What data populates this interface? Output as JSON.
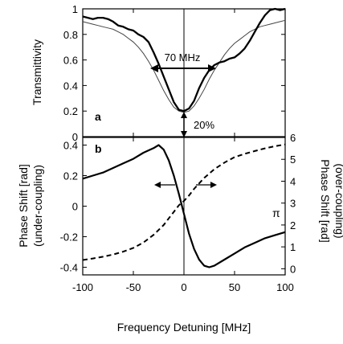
{
  "chart_data": [
    {
      "panel_label": "a",
      "type": "line",
      "ylabel": "Transmittivity",
      "xlim": [
        -100,
        100
      ],
      "ylim": [
        0,
        1
      ],
      "yticks": [
        0,
        0.2,
        0.4,
        0.6,
        0.8,
        1
      ],
      "ytick_labels": [
        "0",
        "0.2",
        "0.4",
        "0.6",
        "0.8",
        "1"
      ],
      "grid": false,
      "annotations": [
        {
          "id": "width",
          "text": "70 MHz"
        },
        {
          "id": "depth",
          "text": "20%"
        }
      ],
      "series": [
        {
          "style": "solid-thick",
          "x": [
            -100,
            -95,
            -90,
            -85,
            -80,
            -75,
            -70,
            -65,
            -60,
            -55,
            -50,
            -45,
            -40,
            -35,
            -30,
            -25,
            -20,
            -15,
            -10,
            -5,
            0,
            5,
            10,
            15,
            20,
            25,
            30,
            35,
            40,
            45,
            50,
            55,
            60,
            65,
            70,
            75,
            80,
            85,
            90,
            95,
            100
          ],
          "y": [
            0.94,
            0.93,
            0.92,
            0.93,
            0.93,
            0.92,
            0.9,
            0.87,
            0.86,
            0.84,
            0.83,
            0.8,
            0.78,
            0.74,
            0.66,
            0.57,
            0.47,
            0.37,
            0.27,
            0.21,
            0.2,
            0.22,
            0.28,
            0.38,
            0.46,
            0.52,
            0.56,
            0.58,
            0.59,
            0.61,
            0.62,
            0.65,
            0.69,
            0.75,
            0.82,
            0.89,
            0.95,
            0.99,
            1.0,
            0.99,
            1.0
          ]
        },
        {
          "style": "solid-thin",
          "x": [
            -100,
            -95,
            -90,
            -85,
            -80,
            -75,
            -70,
            -65,
            -60,
            -55,
            -50,
            -45,
            -40,
            -35,
            -30,
            -25,
            -20,
            -15,
            -10,
            -5,
            0,
            5,
            10,
            15,
            20,
            25,
            30,
            35,
            40,
            45,
            50,
            55,
            60,
            65,
            70,
            75,
            80,
            85,
            90,
            95,
            100
          ],
          "y": [
            0.9,
            0.89,
            0.88,
            0.87,
            0.86,
            0.85,
            0.84,
            0.82,
            0.8,
            0.77,
            0.74,
            0.7,
            0.65,
            0.59,
            0.52,
            0.44,
            0.36,
            0.29,
            0.23,
            0.2,
            0.19,
            0.2,
            0.24,
            0.3,
            0.37,
            0.45,
            0.52,
            0.58,
            0.64,
            0.69,
            0.73,
            0.76,
            0.79,
            0.82,
            0.84,
            0.86,
            0.87,
            0.88,
            0.89,
            0.9,
            0.91
          ]
        }
      ]
    },
    {
      "panel_label": "b",
      "type": "line",
      "xlabel": "Frequency Detuning [MHz]",
      "xlim": [
        -100,
        100
      ],
      "xticks": [
        -100,
        -50,
        0,
        50,
        100
      ],
      "xtick_labels": [
        "-100",
        "-50",
        "0",
        "50",
        "100"
      ],
      "ylabel_left": [
        "Phase Shift [rad]",
        "(under-coupling)"
      ],
      "ylabel_right": [
        "Phase Shift [rad]",
        "(over-coupling)"
      ],
      "ylim_left": [
        -0.45,
        0.45
      ],
      "yticks_left": [
        -0.4,
        -0.2,
        0,
        0.2,
        0.4
      ],
      "ytick_labels_left": [
        "-0.4",
        "-0.2",
        "0",
        "0.2",
        "0.4"
      ],
      "ylim_right": [
        -0.28,
        6.0
      ],
      "yticks_right": [
        0,
        1,
        2,
        3,
        4,
        5,
        6
      ],
      "ytick_labels_right": [
        "0",
        "1",
        "2",
        "3",
        "4",
        "5",
        "6"
      ],
      "annotations": [
        {
          "id": "pi",
          "text": "π"
        }
      ],
      "grid": false,
      "series": [
        {
          "style": "solid",
          "axis": "left",
          "x": [
            -100,
            -90,
            -80,
            -70,
            -60,
            -50,
            -40,
            -30,
            -25,
            -20,
            -15,
            -10,
            -5,
            0,
            5,
            10,
            15,
            20,
            25,
            30,
            40,
            50,
            60,
            70,
            80,
            90,
            100
          ],
          "y": [
            0.18,
            0.2,
            0.22,
            0.25,
            0.28,
            0.31,
            0.35,
            0.38,
            0.4,
            0.37,
            0.3,
            0.2,
            0.08,
            -0.05,
            -0.18,
            -0.28,
            -0.35,
            -0.39,
            -0.4,
            -0.39,
            -0.35,
            -0.31,
            -0.27,
            -0.24,
            -0.21,
            -0.19,
            -0.17
          ]
        },
        {
          "style": "dashed",
          "axis": "right",
          "x": [
            -100,
            -90,
            -80,
            -70,
            -60,
            -50,
            -40,
            -30,
            -20,
            -15,
            -10,
            -5,
            0,
            5,
            10,
            15,
            20,
            30,
            40,
            50,
            60,
            70,
            80,
            90,
            100
          ],
          "y": [
            0.4,
            0.47,
            0.55,
            0.65,
            0.78,
            0.95,
            1.2,
            1.55,
            2.0,
            2.3,
            2.6,
            2.9,
            3.1,
            3.35,
            3.65,
            3.9,
            4.15,
            4.55,
            4.85,
            5.1,
            5.25,
            5.38,
            5.5,
            5.6,
            5.68
          ]
        }
      ]
    }
  ]
}
